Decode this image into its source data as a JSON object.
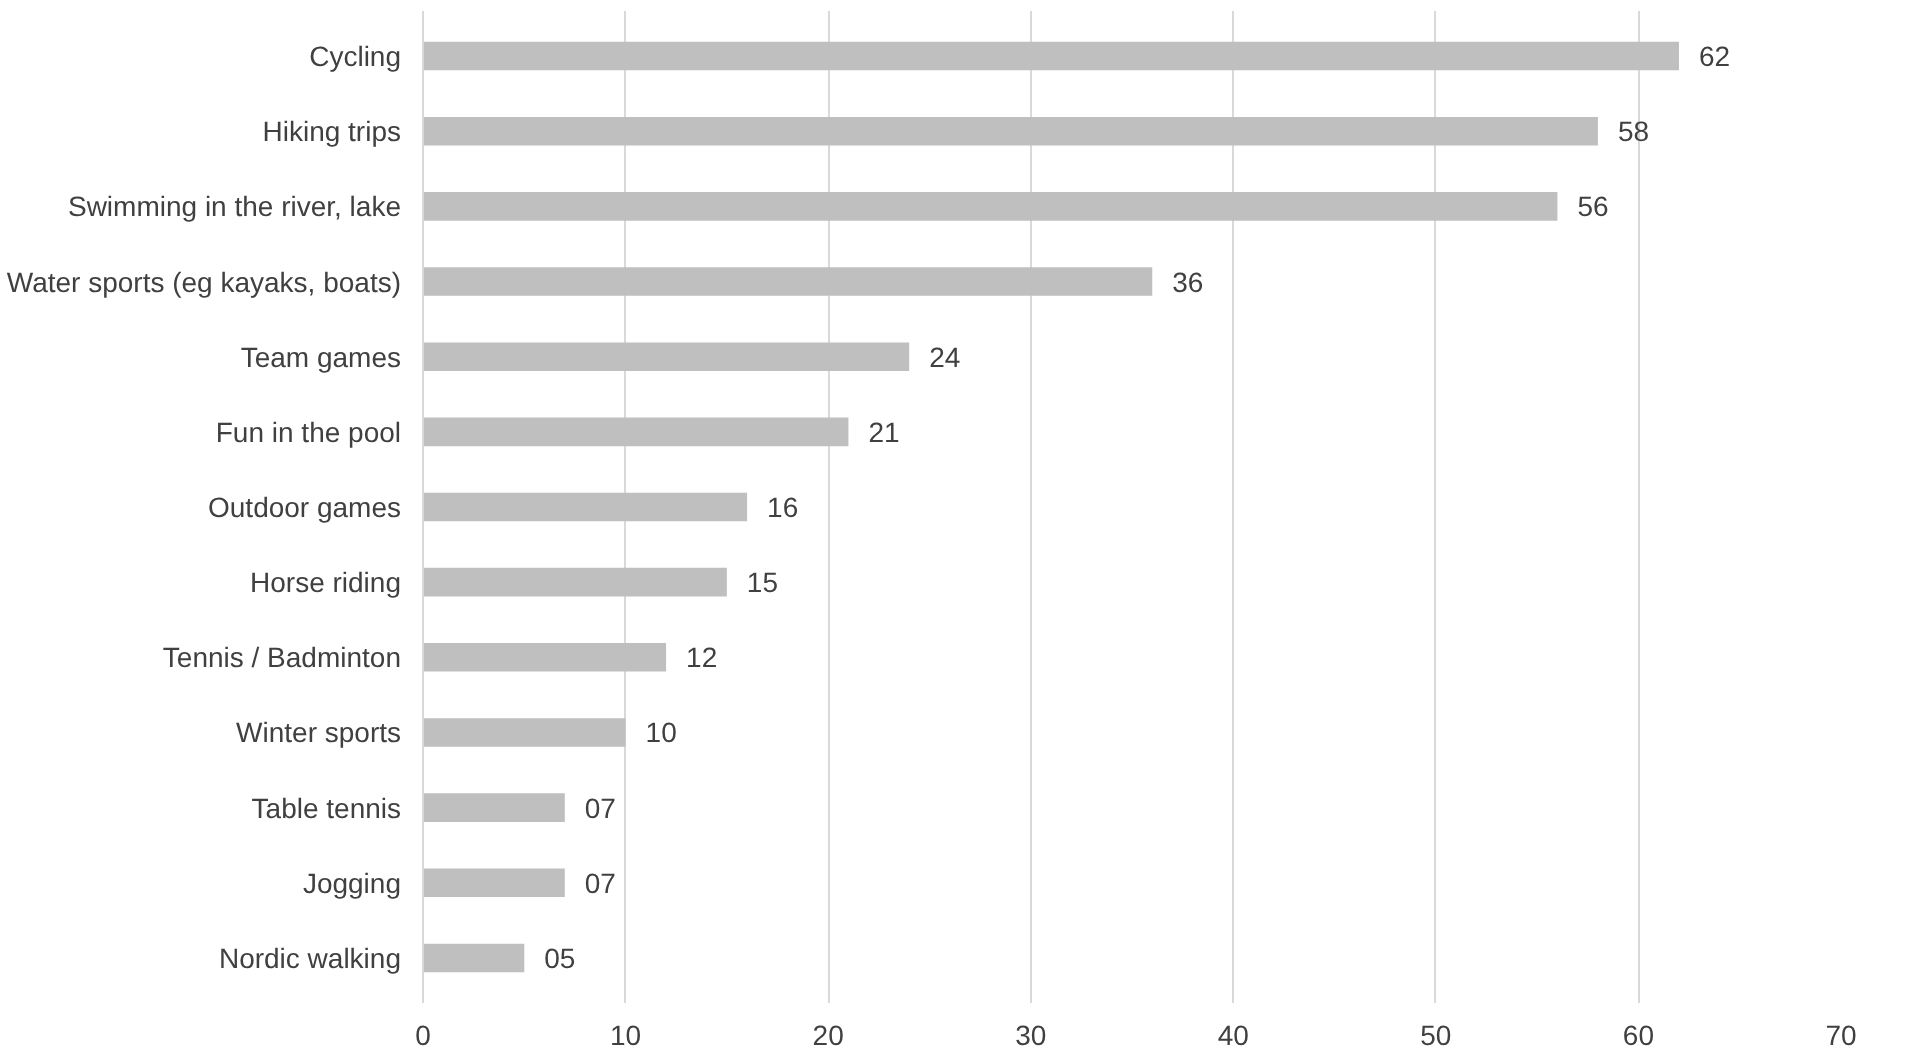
{
  "chart_data": {
    "type": "bar",
    "orientation": "horizontal",
    "categories": [
      "Cycling",
      "Hiking trips",
      "Swimming in the river, lake",
      "Water sports (eg kayaks, boats)",
      "Team games",
      "Fun in the pool",
      "Outdoor games",
      "Horse riding",
      "Tennis / Badminton",
      "Winter sports",
      "Table tennis",
      "Jogging",
      "Nordic walking"
    ],
    "values": [
      62,
      58,
      56,
      36,
      24,
      21,
      16,
      15,
      12,
      10,
      7,
      7,
      5
    ],
    "value_labels": [
      "62",
      "58",
      "56",
      "36",
      "24",
      "21",
      "16",
      "15",
      "12",
      "10",
      "07",
      "07",
      "05"
    ],
    "color": "#bfbfbf",
    "xlim": [
      0,
      70
    ],
    "xticks": [
      0,
      10,
      20,
      30,
      40,
      50,
      60,
      70
    ],
    "grid": "x"
  }
}
